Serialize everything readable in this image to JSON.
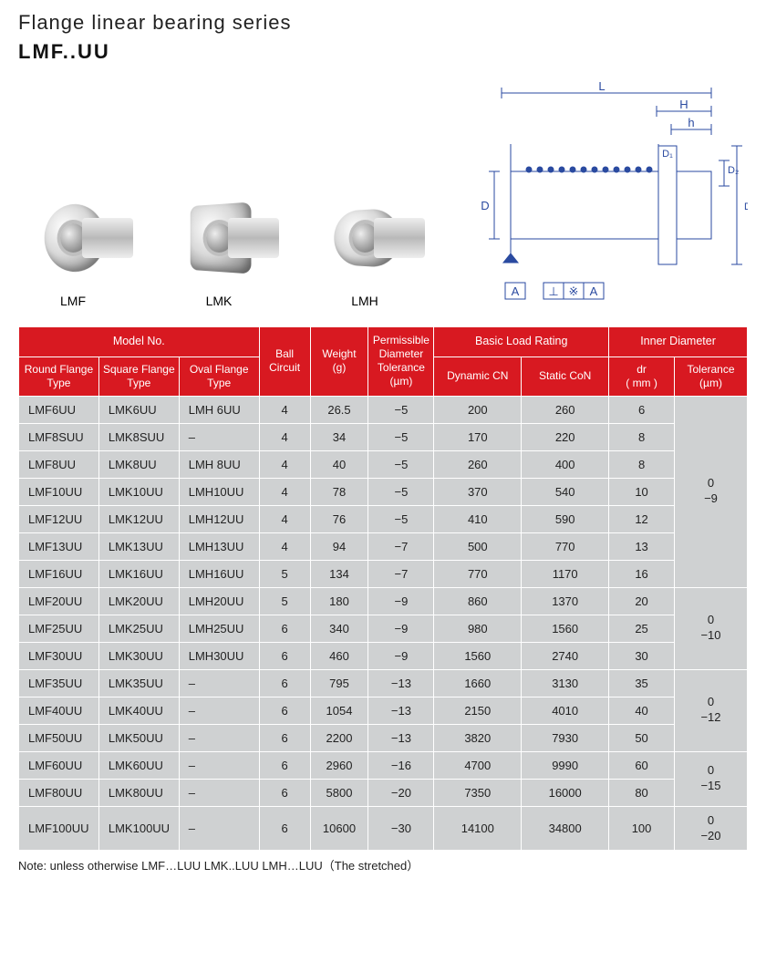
{
  "header": {
    "title": "Flange linear bearing series",
    "subtitle": "LMF..UU"
  },
  "productLabels": [
    "LMF",
    "LMK",
    "LMH"
  ],
  "diagram": {
    "labels": {
      "L": "L",
      "H": "H",
      "h": "h",
      "D": "D",
      "D1": "D₁",
      "D2": "D₂",
      "A": "A"
    }
  },
  "table": {
    "headers": {
      "modelGroup": "Model No.",
      "round": "Round Flange\nType",
      "square": "Square Flange\nType",
      "oval": "Oval Flange\nType",
      "ball": "Ball\nCircuit",
      "weight": "Weight\n(g)",
      "tol": "Permissible\nDiameter\nTolerance\n(µm)",
      "loadGroup": "Basic Load Rating",
      "dyn": "Dynamic CN",
      "stat": "Static CoN",
      "innerGroup": "Inner Diameter",
      "dr": "dr\n( mm )",
      "itol": "Tolerance\n(µm)"
    },
    "rows": [
      {
        "r": "LMF6UU",
        "s": "LMK6UU",
        "o": "LMH 6UU",
        "b": "4",
        "w": "26.5",
        "t": "−5",
        "d": "200",
        "c": "260",
        "dr": "6"
      },
      {
        "r": "LMF8SUU",
        "s": "LMK8SUU",
        "o": "–",
        "b": "4",
        "w": "34",
        "t": "−5",
        "d": "170",
        "c": "220",
        "dr": "8"
      },
      {
        "r": "LMF8UU",
        "s": "LMK8UU",
        "o": "LMH 8UU",
        "b": "4",
        "w": "40",
        "t": "−5",
        "d": "260",
        "c": "400",
        "dr": "8"
      },
      {
        "r": "LMF10UU",
        "s": "LMK10UU",
        "o": "LMH10UU",
        "b": "4",
        "w": "78",
        "t": "−5",
        "d": "370",
        "c": "540",
        "dr": "10"
      },
      {
        "r": "LMF12UU",
        "s": "LMK12UU",
        "o": "LMH12UU",
        "b": "4",
        "w": "76",
        "t": "−5",
        "d": "410",
        "c": "590",
        "dr": "12"
      },
      {
        "r": "LMF13UU",
        "s": "LMK13UU",
        "o": "LMH13UU",
        "b": "4",
        "w": "94",
        "t": "−7",
        "d": "500",
        "c": "770",
        "dr": "13"
      },
      {
        "r": "LMF16UU",
        "s": "LMK16UU",
        "o": "LMH16UU",
        "b": "5",
        "w": "134",
        "t": "−7",
        "d": "770",
        "c": "1170",
        "dr": "16"
      },
      {
        "r": "LMF20UU",
        "s": "LMK20UU",
        "o": "LMH20UU",
        "b": "5",
        "w": "180",
        "t": "−9",
        "d": "860",
        "c": "1370",
        "dr": "20"
      },
      {
        "r": "LMF25UU",
        "s": "LMK25UU",
        "o": "LMH25UU",
        "b": "6",
        "w": "340",
        "t": "−9",
        "d": "980",
        "c": "1560",
        "dr": "25"
      },
      {
        "r": "LMF30UU",
        "s": "LMK30UU",
        "o": "LMH30UU",
        "b": "6",
        "w": "460",
        "t": "−9",
        "d": "1560",
        "c": "2740",
        "dr": "30"
      },
      {
        "r": "LMF35UU",
        "s": "LMK35UU",
        "o": "–",
        "b": "6",
        "w": "795",
        "t": "−13",
        "d": "1660",
        "c": "3130",
        "dr": "35"
      },
      {
        "r": "LMF40UU",
        "s": "LMK40UU",
        "o": "–",
        "b": "6",
        "w": "1054",
        "t": "−13",
        "d": "2150",
        "c": "4010",
        "dr": "40"
      },
      {
        "r": "LMF50UU",
        "s": "LMK50UU",
        "o": "–",
        "b": "6",
        "w": "2200",
        "t": "−13",
        "d": "3820",
        "c": "7930",
        "dr": "50"
      },
      {
        "r": "LMF60UU",
        "s": "LMK60UU",
        "o": "–",
        "b": "6",
        "w": "2960",
        "t": "−16",
        "d": "4700",
        "c": "9990",
        "dr": "60"
      },
      {
        "r": "LMF80UU",
        "s": "LMK80UU",
        "o": "–",
        "b": "6",
        "w": "5800",
        "t": "−20",
        "d": "7350",
        "c": "16000",
        "dr": "80"
      },
      {
        "r": "LMF100UU",
        "s": "LMK100UU",
        "o": "–",
        "b": "6",
        "w": "10600",
        "t": "−30",
        "d": "14100",
        "c": "34800",
        "dr": "100"
      }
    ],
    "tolSpans": [
      {
        "start": 0,
        "span": 7,
        "text": "0\n−9"
      },
      {
        "start": 7,
        "span": 3,
        "text": "0\n−10"
      },
      {
        "start": 10,
        "span": 3,
        "text": "0\n−12"
      },
      {
        "start": 13,
        "span": 2,
        "text": "0\n−15"
      },
      {
        "start": 15,
        "span": 1,
        "text": "0\n−20"
      }
    ]
  },
  "note": "Note: unless otherwise LMF…LUU   LMK..LUU   LMH…LUU（The stretched）",
  "colors": {
    "headerBg": "#d81921",
    "rowBg": "#cfd1d2"
  }
}
